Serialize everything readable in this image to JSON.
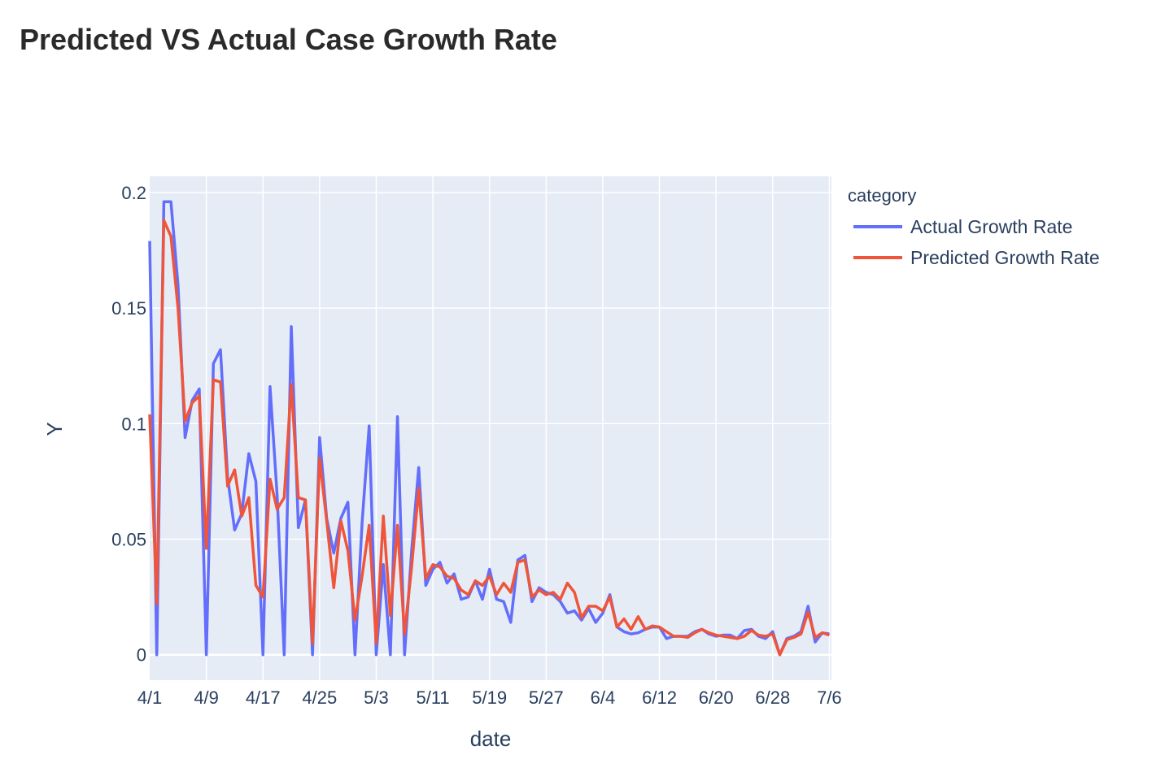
{
  "chart_data": {
    "type": "line",
    "title": "Predicted VS Actual Case Growth Rate",
    "xlabel": "date",
    "ylabel": "Y",
    "ylim": [
      -0.011,
      0.207
    ],
    "y_ticks": [
      0,
      0.05,
      0.1,
      0.15,
      0.2
    ],
    "y_tick_labels": [
      "0",
      "0.05",
      "0.1",
      "0.15",
      "0.2"
    ],
    "x_tick_labels": [
      "4/1",
      "4/9",
      "4/17",
      "4/25",
      "5/3",
      "5/11",
      "5/19",
      "5/27",
      "6/4",
      "6/12",
      "6/20",
      "6/28",
      "7/6"
    ],
    "x_tick_days": [
      0,
      8,
      16,
      24,
      32,
      40,
      48,
      56,
      64,
      72,
      80,
      88,
      96
    ],
    "x_range_days": [
      0,
      96.3
    ],
    "grid": true,
    "legend_title": "category",
    "legend_position": "right",
    "colors": {
      "actual": "#636efa",
      "predicted": "#ef553b",
      "plot_bg": "#e5ecf6",
      "grid": "#ffffff"
    },
    "series": [
      {
        "name": "Actual Growth Rate",
        "color": "#636efa",
        "values": [
          0.179,
          0.0,
          0.196,
          0.196,
          0.16,
          0.094,
          0.11,
          0.115,
          0.0,
          0.126,
          0.132,
          0.077,
          0.054,
          0.061,
          0.087,
          0.075,
          0.0,
          0.116,
          0.069,
          0.0,
          0.142,
          0.055,
          0.067,
          0.0,
          0.094,
          0.059,
          0.044,
          0.059,
          0.066,
          0.0,
          0.057,
          0.099,
          0.0,
          0.039,
          0.0,
          0.103,
          0.0,
          0.045,
          0.081,
          0.03,
          0.037,
          0.04,
          0.031,
          0.035,
          0.024,
          0.025,
          0.032,
          0.024,
          0.037,
          0.024,
          0.023,
          0.014,
          0.041,
          0.043,
          0.023,
          0.029,
          0.027,
          0.026,
          0.023,
          0.018,
          0.019,
          0.015,
          0.02,
          0.014,
          0.018,
          0.026,
          0.012,
          0.01,
          0.009,
          0.0095,
          0.011,
          0.012,
          0.012,
          0.007,
          0.008,
          0.008,
          0.008,
          0.01,
          0.011,
          0.009,
          0.008,
          0.0085,
          0.0085,
          0.007,
          0.0105,
          0.011,
          0.008,
          0.007,
          0.01,
          0.0,
          0.007,
          0.008,
          0.01,
          0.021,
          0.0055,
          0.0095,
          0.009
        ]
      },
      {
        "name": "Predicted Growth Rate",
        "color": "#ef553b",
        "values": [
          0.104,
          0.022,
          0.188,
          0.181,
          0.15,
          0.101,
          0.109,
          0.112,
          0.046,
          0.119,
          0.118,
          0.073,
          0.08,
          0.06,
          0.068,
          0.03,
          0.025,
          0.076,
          0.063,
          0.068,
          0.117,
          0.068,
          0.067,
          0.005,
          0.085,
          0.058,
          0.029,
          0.058,
          0.045,
          0.015,
          0.034,
          0.056,
          0.005,
          0.06,
          0.017,
          0.056,
          0.009,
          0.038,
          0.072,
          0.033,
          0.039,
          0.038,
          0.034,
          0.033,
          0.028,
          0.026,
          0.032,
          0.03,
          0.034,
          0.026,
          0.031,
          0.027,
          0.04,
          0.041,
          0.025,
          0.028,
          0.026,
          0.027,
          0.024,
          0.031,
          0.027,
          0.016,
          0.021,
          0.021,
          0.019,
          0.025,
          0.012,
          0.0155,
          0.011,
          0.0165,
          0.011,
          0.0125,
          0.012,
          0.01,
          0.008,
          0.008,
          0.0075,
          0.0095,
          0.011,
          0.0095,
          0.0085,
          0.008,
          0.0075,
          0.007,
          0.008,
          0.0105,
          0.0085,
          0.008,
          0.009,
          0.0,
          0.0065,
          0.0075,
          0.009,
          0.0185,
          0.0075,
          0.0095,
          0.0085
        ]
      }
    ]
  }
}
